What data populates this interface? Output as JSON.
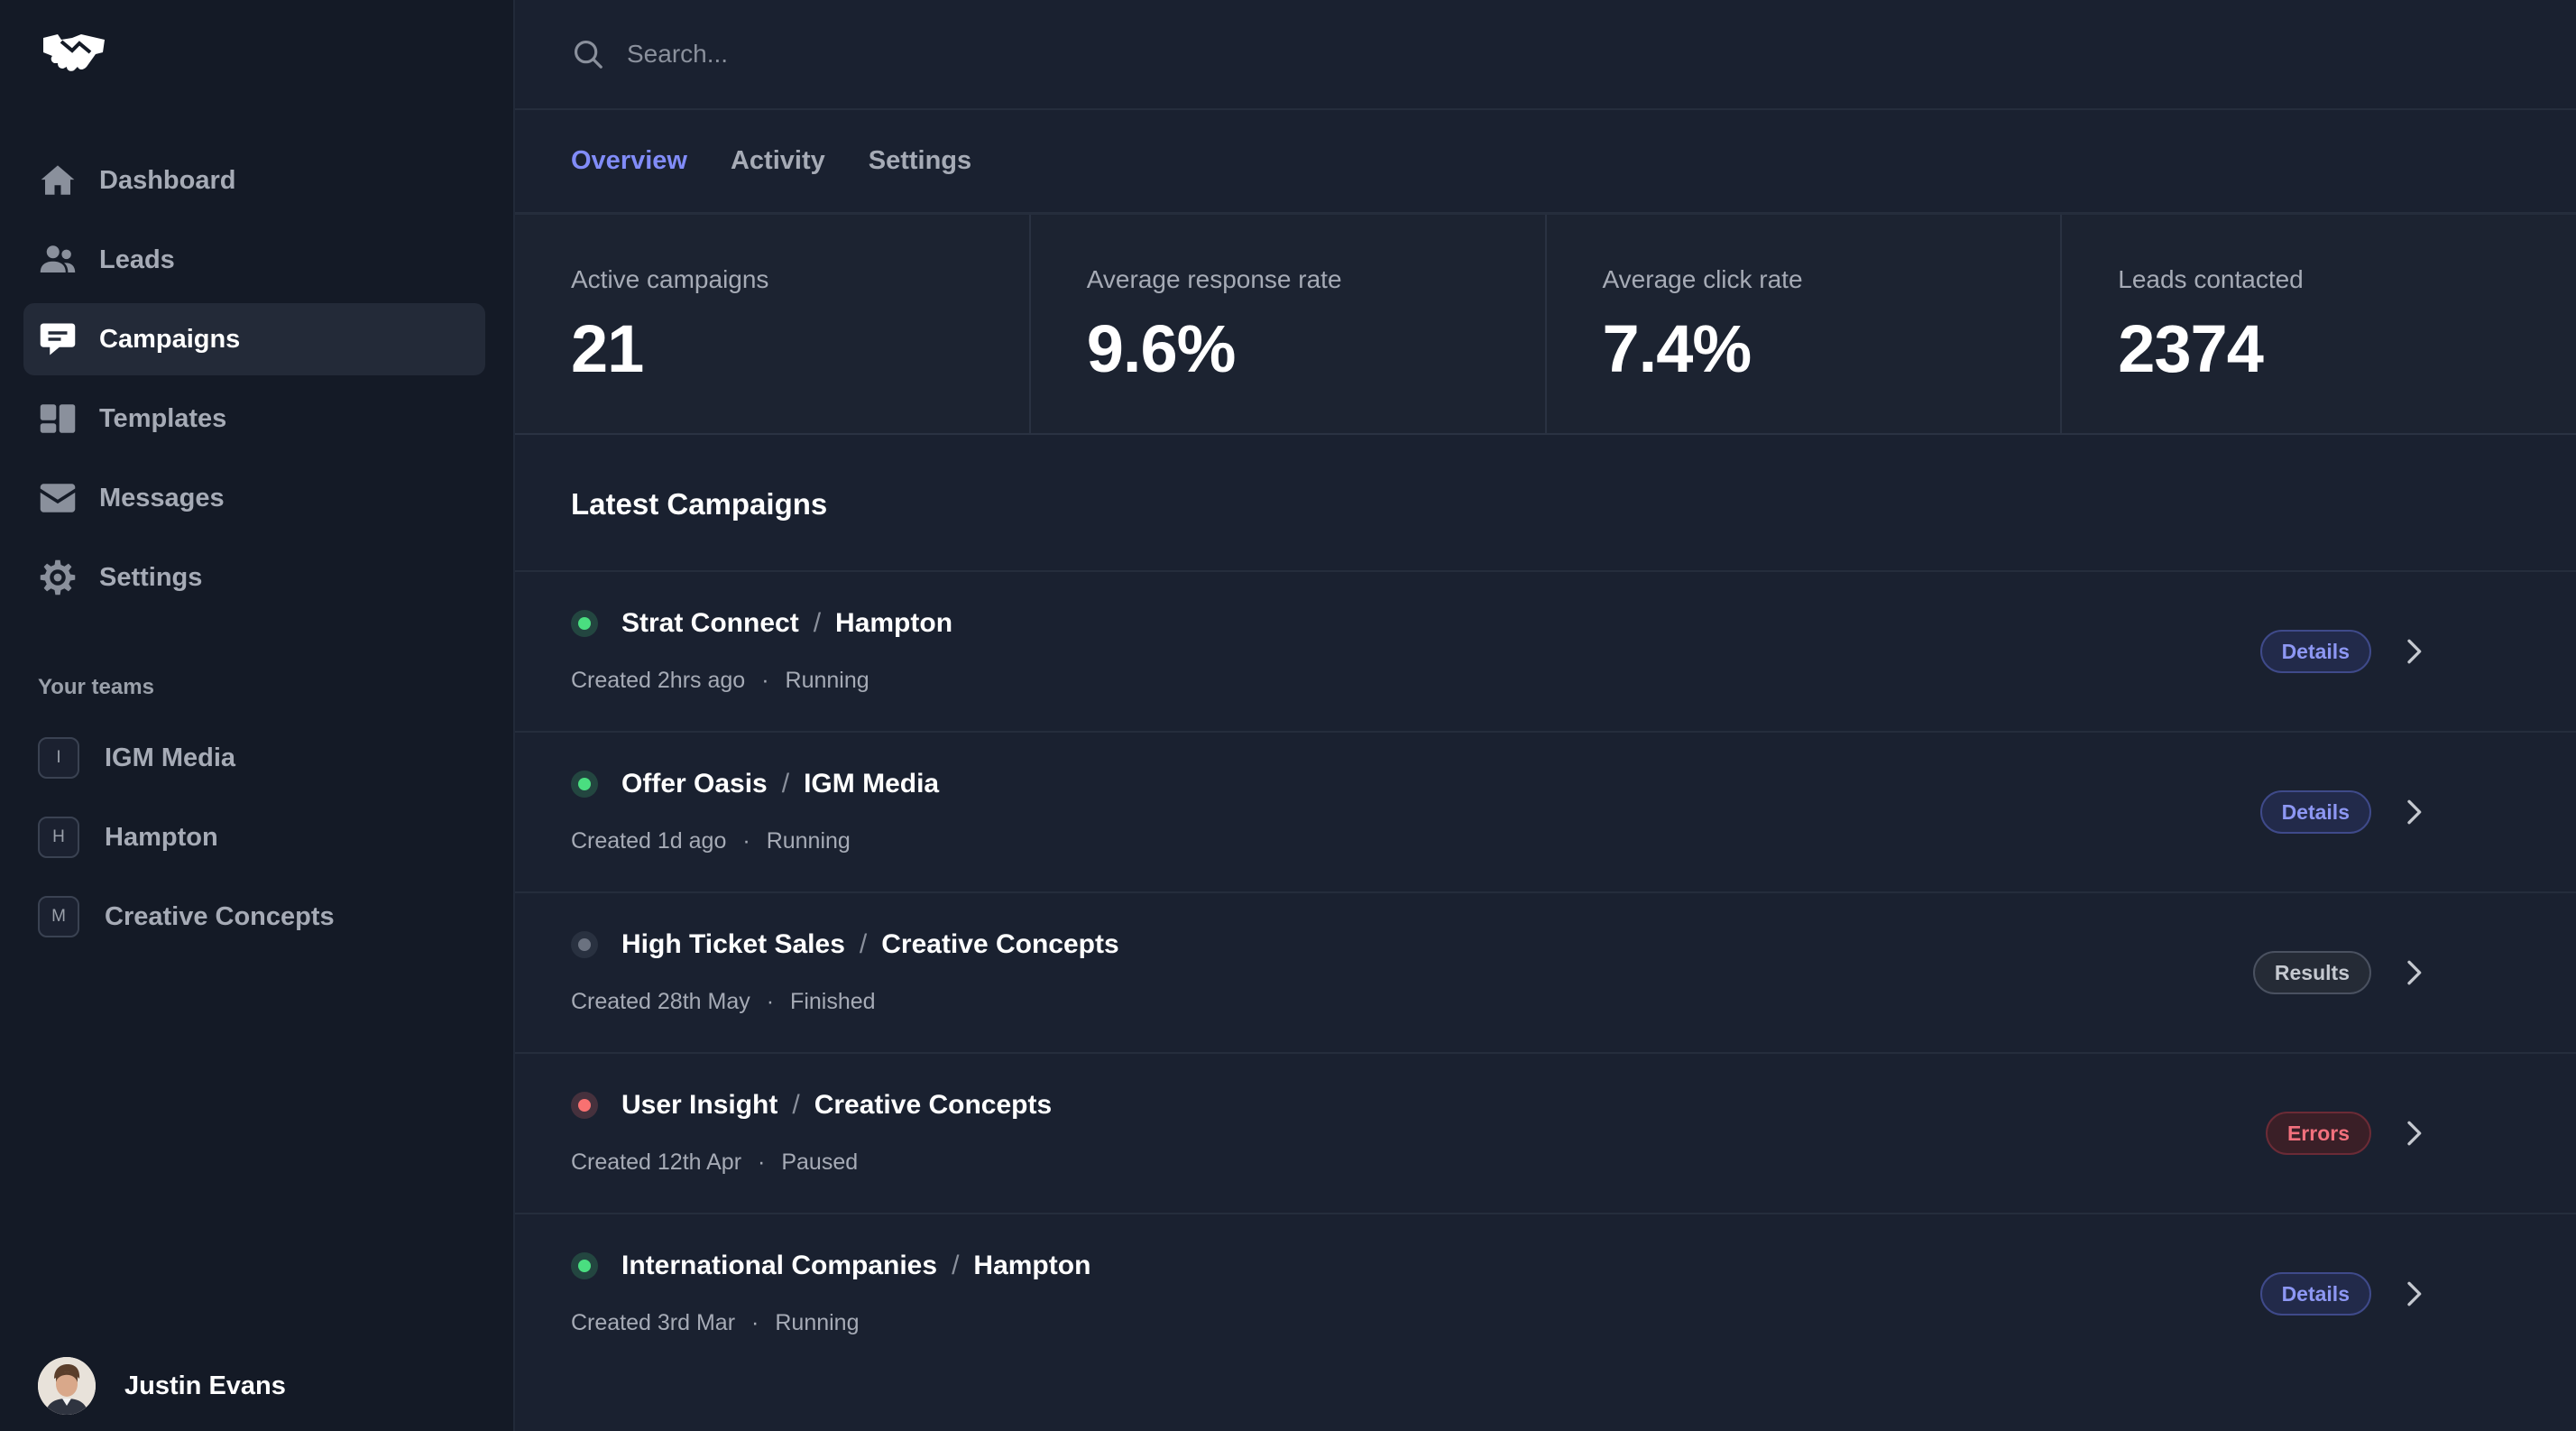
{
  "sidebar": {
    "items": [
      {
        "label": "Dashboard",
        "icon": "home-icon"
      },
      {
        "label": "Leads",
        "icon": "users-icon"
      },
      {
        "label": "Campaigns",
        "icon": "chat-icon",
        "active": true
      },
      {
        "label": "Templates",
        "icon": "template-icon"
      },
      {
        "label": "Messages",
        "icon": "envelope-icon"
      },
      {
        "label": "Settings",
        "icon": "gear-icon"
      }
    ],
    "teams_title": "Your teams",
    "teams": [
      {
        "initial": "I",
        "label": "IGM Media"
      },
      {
        "initial": "H",
        "label": "Hampton"
      },
      {
        "initial": "M",
        "label": "Creative Concepts"
      }
    ],
    "user": {
      "name": "Justin Evans"
    }
  },
  "search": {
    "placeholder": "Search..."
  },
  "tabs": [
    {
      "label": "Overview",
      "active": true
    },
    {
      "label": "Activity"
    },
    {
      "label": "Settings"
    }
  ],
  "stats": [
    {
      "label": "Active campaigns",
      "value": "21"
    },
    {
      "label": "Average response rate",
      "value": "9.6%"
    },
    {
      "label": "Average click rate",
      "value": "7.4%"
    },
    {
      "label": "Leads contacted",
      "value": "2374"
    }
  ],
  "section_title": "Latest Campaigns",
  "campaigns": [
    {
      "name": "Strat Connect",
      "team": "Hampton",
      "created": "Created 2hrs ago",
      "status": "Running",
      "action": "Details",
      "status_color": "#4ade80"
    },
    {
      "name": "Offer Oasis",
      "team": "IGM Media",
      "created": "Created 1d ago",
      "status": "Running",
      "action": "Details",
      "status_color": "#4ade80"
    },
    {
      "name": "High Ticket Sales",
      "team": "Creative Concepts",
      "created": "Created 28th May",
      "status": "Finished",
      "action": "Results",
      "status_color": "#6b7280"
    },
    {
      "name": "User Insight",
      "team": "Creative Concepts",
      "created": "Created 12th Apr",
      "status": "Paused",
      "action": "Errors",
      "status_color": "#f87171"
    },
    {
      "name": "International Companies",
      "team": "Hampton",
      "created": "Created 3rd Mar",
      "status": "Running",
      "action": "Details",
      "status_color": "#4ade80"
    }
  ],
  "colors": {
    "accent": "#818cf8",
    "running": "#4ade80",
    "finished": "#6b7280",
    "errors": "#f87171"
  }
}
